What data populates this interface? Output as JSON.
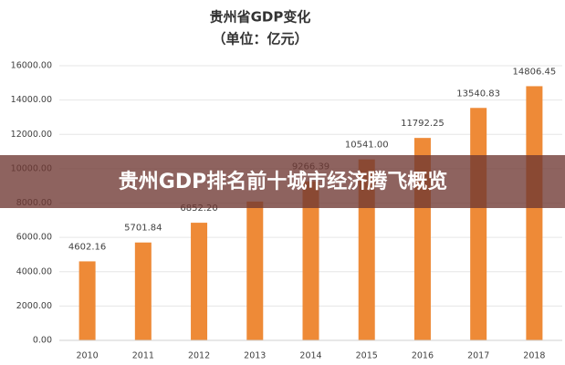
{
  "chart_data": {
    "type": "bar",
    "title": "贵州省GDP变化",
    "subtitle": "（单位：亿元）",
    "categories": [
      "2010",
      "2011",
      "2012",
      "2013",
      "2014",
      "2015",
      "2016",
      "2017",
      "2018"
    ],
    "values": [
      4602.16,
      5701.84,
      6852.2,
      8086.86,
      9266.39,
      10541,
      11792.25,
      13540.83,
      14806.45
    ],
    "value_labels": [
      "4602.16",
      "5701.84",
      "6852.20",
      null,
      "9266.39",
      "10541.00",
      "11792.25",
      "13540.83",
      "14806.45"
    ],
    "color": "#ee8a37",
    "ylim": [
      0,
      16000
    ],
    "yticks": [
      {
        "value": 0,
        "label": "0.00"
      },
      {
        "value": 2000,
        "label": "2000.00"
      },
      {
        "value": 4000,
        "label": "4000.00"
      },
      {
        "value": 6000,
        "label": "6000.00"
      },
      {
        "value": 8000,
        "label": "8000.00"
      },
      {
        "value": 10000,
        "label": "10000.00"
      },
      {
        "value": 12000,
        "label": "12000.00"
      },
      {
        "value": 14000,
        "label": "14000.00"
      },
      {
        "value": 16000,
        "label": "16000.00"
      }
    ],
    "grid": true
  },
  "banner": {
    "text": "贵州GDP排名前十城市经济腾飞概览"
  }
}
